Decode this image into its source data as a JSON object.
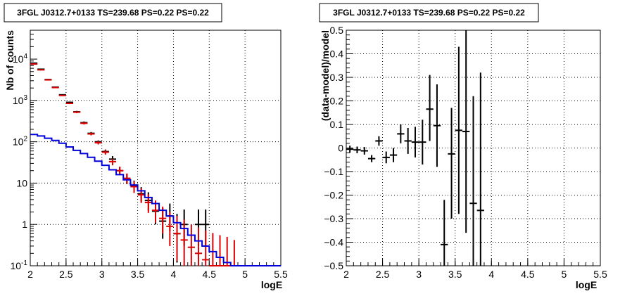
{
  "chart_data": [
    {
      "type": "scatter",
      "title": "3FGL J0312.7+0133 TS=239.68 PS=0.22 PS=0.22",
      "xlabel": "logE",
      "ylabel": "Nb of counts",
      "xlim": [
        2,
        5.5
      ],
      "ylim": [
        0.1,
        50000
      ],
      "yscale": "log",
      "grid": true,
      "x_ticks": [
        {
          "v": 2,
          "label": "2"
        },
        {
          "v": 2.5,
          "label": "2.5"
        },
        {
          "v": 3,
          "label": "3"
        },
        {
          "v": 3.5,
          "label": "3.5"
        },
        {
          "v": 4,
          "label": "4"
        },
        {
          "v": 4.5,
          "label": "4.5"
        },
        {
          "v": 5,
          "label": "5"
        },
        {
          "v": 5.5,
          "label": "5.5"
        }
      ],
      "y_ticks": [
        {
          "v": 0.1,
          "base": "10",
          "exp": "-1"
        },
        {
          "v": 1,
          "base": "1",
          "exp": ""
        },
        {
          "v": 10,
          "base": "10",
          "exp": ""
        },
        {
          "v": 100,
          "base": "10",
          "exp": "2"
        },
        {
          "v": 1000,
          "base": "10",
          "exp": "3"
        },
        {
          "v": 10000,
          "base": "10",
          "exp": "4"
        }
      ],
      "series": [
        {
          "kind": "errorbar",
          "color": "#000000",
          "points": [
            {
              "x": 2.05,
              "y": 8000,
              "lo": 7800,
              "hi": 8200
            },
            {
              "x": 2.15,
              "y": 5700,
              "lo": 5600,
              "hi": 5800
            },
            {
              "x": 2.25,
              "y": 3200,
              "lo": 3100,
              "hi": 3300
            },
            {
              "x": 2.35,
              "y": 2100,
              "lo": 2050,
              "hi": 2150
            },
            {
              "x": 2.45,
              "y": 1370,
              "lo": 1330,
              "hi": 1410
            },
            {
              "x": 2.55,
              "y": 900,
              "lo": 860,
              "hi": 940
            },
            {
              "x": 2.65,
              "y": 530,
              "lo": 500,
              "hi": 560
            },
            {
              "x": 2.75,
              "y": 290,
              "lo": 270,
              "hi": 310
            },
            {
              "x": 2.85,
              "y": 160,
              "lo": 148,
              "hi": 172
            },
            {
              "x": 2.95,
              "y": 100,
              "lo": 92,
              "hi": 108
            },
            {
              "x": 3.05,
              "y": 58,
              "lo": 51,
              "hi": 65
            },
            {
              "x": 3.15,
              "y": 38,
              "lo": 32,
              "hi": 45
            },
            {
              "x": 3.25,
              "y": 20,
              "lo": 16,
              "hi": 25
            },
            {
              "x": 3.35,
              "y": 13,
              "lo": 9.5,
              "hi": 17
            },
            {
              "x": 3.45,
              "y": 8.5,
              "lo": 6,
              "hi": 11.5
            },
            {
              "x": 3.55,
              "y": 5.5,
              "lo": 3.5,
              "hi": 8
            },
            {
              "x": 3.65,
              "y": 3.8,
              "lo": 2.2,
              "hi": 6
            },
            {
              "x": 3.75,
              "y": 2.1,
              "lo": 1,
              "hi": 3.7
            },
            {
              "x": 3.85,
              "y": 1.2,
              "lo": 0.45,
              "hi": 2.5
            },
            {
              "x": 3.95,
              "y": 1.6,
              "lo": 0.7,
              "hi": 3.2
            },
            {
              "x": 4.05,
              "y": 0.6,
              "lo": 0.12,
              "hi": 1.8
            },
            {
              "x": 4.15,
              "y": 1.0,
              "lo": 0.3,
              "hi": 2.3
            },
            {
              "x": 4.35,
              "y": 1.0,
              "lo": 0.3,
              "hi": 2.3
            },
            {
              "x": 4.45,
              "y": 1.0,
              "lo": 0.3,
              "hi": 2.3
            }
          ]
        },
        {
          "kind": "errorbar",
          "color": "#dd0000",
          "points": [
            {
              "x": 2.05,
              "y": 7600,
              "lo": 7400,
              "hi": 7800
            },
            {
              "x": 2.15,
              "y": 5500,
              "lo": 5350,
              "hi": 5650
            },
            {
              "x": 2.25,
              "y": 3150,
              "lo": 3050,
              "hi": 3250
            },
            {
              "x": 2.35,
              "y": 2050,
              "lo": 1990,
              "hi": 2110
            },
            {
              "x": 2.45,
              "y": 1320,
              "lo": 1280,
              "hi": 1360
            },
            {
              "x": 2.55,
              "y": 850,
              "lo": 815,
              "hi": 885
            },
            {
              "x": 2.65,
              "y": 520,
              "lo": 492,
              "hi": 548
            },
            {
              "x": 2.75,
              "y": 280,
              "lo": 262,
              "hi": 298
            },
            {
              "x": 2.85,
              "y": 155,
              "lo": 143,
              "hi": 167
            },
            {
              "x": 2.95,
              "y": 95,
              "lo": 86,
              "hi": 104
            },
            {
              "x": 3.05,
              "y": 56,
              "lo": 49,
              "hi": 63
            },
            {
              "x": 3.15,
              "y": 33,
              "lo": 27,
              "hi": 39
            },
            {
              "x": 3.25,
              "y": 20,
              "lo": 16,
              "hi": 25
            },
            {
              "x": 3.35,
              "y": 13,
              "lo": 9.5,
              "hi": 17
            },
            {
              "x": 3.45,
              "y": 8.2,
              "lo": 5.8,
              "hi": 11
            },
            {
              "x": 3.55,
              "y": 5.2,
              "lo": 3.3,
              "hi": 7.5
            },
            {
              "x": 3.65,
              "y": 3.4,
              "lo": 1.9,
              "hi": 5.4
            },
            {
              "x": 3.75,
              "y": 2.2,
              "lo": 1.1,
              "hi": 3.8
            },
            {
              "x": 3.85,
              "y": 1.4,
              "lo": 0.6,
              "hi": 2.7
            },
            {
              "x": 3.95,
              "y": 0.9,
              "lo": 0.3,
              "hi": 2.0
            },
            {
              "x": 4.05,
              "y": 0.6,
              "lo": 0.13,
              "hi": 1.6
            },
            {
              "x": 4.15,
              "y": 0.42,
              "lo": 0.1,
              "hi": 1.3
            },
            {
              "x": 4.25,
              "y": 0.28,
              "lo": 0.1,
              "hi": 1.0
            },
            {
              "x": 4.35,
              "y": 0.2,
              "lo": 0.1,
              "hi": 0.85
            },
            {
              "x": 4.45,
              "y": 0.14,
              "lo": 0.1,
              "hi": 0.72
            },
            {
              "x": 4.55,
              "y": 0.1,
              "lo": 0.1,
              "hi": 0.62
            },
            {
              "x": 4.65,
              "y": 0.1,
              "lo": 0.1,
              "hi": 0.55
            },
            {
              "x": 4.75,
              "y": 0.1,
              "lo": 0.1,
              "hi": 0.5
            },
            {
              "x": 4.85,
              "y": 0.1,
              "lo": 0.1,
              "hi": 0.42
            }
          ]
        },
        {
          "kind": "step",
          "color": "#0000dd",
          "bins": [
            {
              "x0": 2.0,
              "x1": 2.1,
              "y": 150
            },
            {
              "x0": 2.1,
              "x1": 2.2,
              "y": 138
            },
            {
              "x0": 2.2,
              "x1": 2.3,
              "y": 122
            },
            {
              "x0": 2.3,
              "x1": 2.4,
              "y": 108
            },
            {
              "x0": 2.4,
              "x1": 2.5,
              "y": 92
            },
            {
              "x0": 2.5,
              "x1": 2.6,
              "y": 75
            },
            {
              "x0": 2.6,
              "x1": 2.7,
              "y": 62
            },
            {
              "x0": 2.7,
              "x1": 2.8,
              "y": 52
            },
            {
              "x0": 2.8,
              "x1": 2.9,
              "y": 42
            },
            {
              "x0": 2.9,
              "x1": 3.0,
              "y": 34
            },
            {
              "x0": 3.0,
              "x1": 3.1,
              "y": 27
            },
            {
              "x0": 3.1,
              "x1": 3.2,
              "y": 21
            },
            {
              "x0": 3.2,
              "x1": 3.3,
              "y": 16
            },
            {
              "x0": 3.3,
              "x1": 3.4,
              "y": 12
            },
            {
              "x0": 3.4,
              "x1": 3.5,
              "y": 9
            },
            {
              "x0": 3.5,
              "x1": 3.6,
              "y": 6.5
            },
            {
              "x0": 3.6,
              "x1": 3.7,
              "y": 4.5
            },
            {
              "x0": 3.7,
              "x1": 3.8,
              "y": 3.2
            },
            {
              "x0": 3.8,
              "x1": 3.9,
              "y": 2.2
            },
            {
              "x0": 3.9,
              "x1": 4.0,
              "y": 1.6
            },
            {
              "x0": 4.0,
              "x1": 4.1,
              "y": 1.1
            },
            {
              "x0": 4.1,
              "x1": 4.2,
              "y": 0.8
            },
            {
              "x0": 4.2,
              "x1": 4.3,
              "y": 0.55
            },
            {
              "x0": 4.3,
              "x1": 4.4,
              "y": 0.4
            },
            {
              "x0": 4.4,
              "x1": 4.5,
              "y": 0.3
            },
            {
              "x0": 4.5,
              "x1": 4.6,
              "y": 0.22
            },
            {
              "x0": 4.6,
              "x1": 4.7,
              "y": 0.16
            },
            {
              "x0": 4.7,
              "x1": 4.8,
              "y": 0.12
            },
            {
              "x0": 4.8,
              "x1": 4.9,
              "y": 0.1
            },
            {
              "x0": 4.9,
              "x1": 5.0,
              "y": 0.1
            },
            {
              "x0": 5.0,
              "x1": 5.1,
              "y": 0.1
            },
            {
              "x0": 5.1,
              "x1": 5.2,
              "y": 0.1
            },
            {
              "x0": 5.2,
              "x1": 5.3,
              "y": 0.1
            },
            {
              "x0": 5.3,
              "x1": 5.4,
              "y": 0.1
            },
            {
              "x0": 5.4,
              "x1": 5.5,
              "y": 0.1
            }
          ]
        }
      ]
    },
    {
      "type": "scatter",
      "title": "3FGL J0312.7+0133 TS=239.68 PS=0.22 PS=0.22",
      "xlabel": "logE",
      "ylabel": "(data-model)/model",
      "xlim": [
        2,
        5.5
      ],
      "ylim": [
        -0.5,
        0.5
      ],
      "yscale": "linear",
      "grid": true,
      "x_ticks": [
        {
          "v": 2,
          "label": "2"
        },
        {
          "v": 2.5,
          "label": "2.5"
        },
        {
          "v": 3,
          "label": "3"
        },
        {
          "v": 3.5,
          "label": "3.5"
        },
        {
          "v": 4,
          "label": "4"
        },
        {
          "v": 4.5,
          "label": "4.5"
        },
        {
          "v": 5,
          "label": "5"
        },
        {
          "v": 5.5,
          "label": "5.5"
        }
      ],
      "y_ticks": [
        {
          "v": -0.5,
          "label": "−0.5"
        },
        {
          "v": -0.4,
          "label": "−0.4"
        },
        {
          "v": -0.3,
          "label": "−0.3"
        },
        {
          "v": -0.2,
          "label": "−0.2"
        },
        {
          "v": -0.1,
          "label": "−0.1"
        },
        {
          "v": 0,
          "label": "0"
        },
        {
          "v": 0.1,
          "label": "0.1"
        },
        {
          "v": 0.2,
          "label": "0.2"
        },
        {
          "v": 0.3,
          "label": "0.3"
        },
        {
          "v": 0.4,
          "label": "0.4"
        },
        {
          "v": 0.5,
          "label": "0.5"
        }
      ],
      "series": [
        {
          "kind": "errorbar",
          "color": "#000000",
          "points": [
            {
              "x": 2.05,
              "y": -0.005,
              "lo": -0.02,
              "hi": 0.01
            },
            {
              "x": 2.15,
              "y": -0.008,
              "lo": -0.022,
              "hi": 0.006
            },
            {
              "x": 2.25,
              "y": -0.012,
              "lo": -0.028,
              "hi": 0.004
            },
            {
              "x": 2.35,
              "y": -0.045,
              "lo": -0.06,
              "hi": -0.03
            },
            {
              "x": 2.45,
              "y": 0.03,
              "lo": 0.01,
              "hi": 0.05
            },
            {
              "x": 2.55,
              "y": -0.04,
              "lo": -0.065,
              "hi": -0.015
            },
            {
              "x": 2.65,
              "y": -0.03,
              "lo": -0.06,
              "hi": 0.0
            },
            {
              "x": 2.75,
              "y": 0.06,
              "lo": 0.02,
              "hi": 0.1
            },
            {
              "x": 2.85,
              "y": 0.03,
              "lo": -0.025,
              "hi": 0.085
            },
            {
              "x": 2.95,
              "y": 0.025,
              "lo": -0.04,
              "hi": 0.09
            },
            {
              "x": 3.05,
              "y": 0.025,
              "lo": -0.07,
              "hi": 0.12
            },
            {
              "x": 3.15,
              "y": 0.165,
              "lo": 0.03,
              "hi": 0.31
            },
            {
              "x": 3.25,
              "y": 0.095,
              "lo": -0.08,
              "hi": 0.27
            },
            {
              "x": 3.35,
              "y": -0.41,
              "lo": -0.5,
              "hi": -0.22
            },
            {
              "x": 3.45,
              "y": -0.025,
              "lo": -0.3,
              "hi": 0.17
            },
            {
              "x": 3.55,
              "y": 0.075,
              "lo": -0.28,
              "hi": 0.43
            },
            {
              "x": 3.65,
              "y": 0.07,
              "lo": -0.36,
              "hi": 0.5
            },
            {
              "x": 3.75,
              "y": -0.235,
              "lo": -0.5,
              "hi": 0.22
            },
            {
              "x": 3.85,
              "y": -0.265,
              "lo": -0.5,
              "hi": 0.32
            }
          ]
        }
      ]
    }
  ]
}
